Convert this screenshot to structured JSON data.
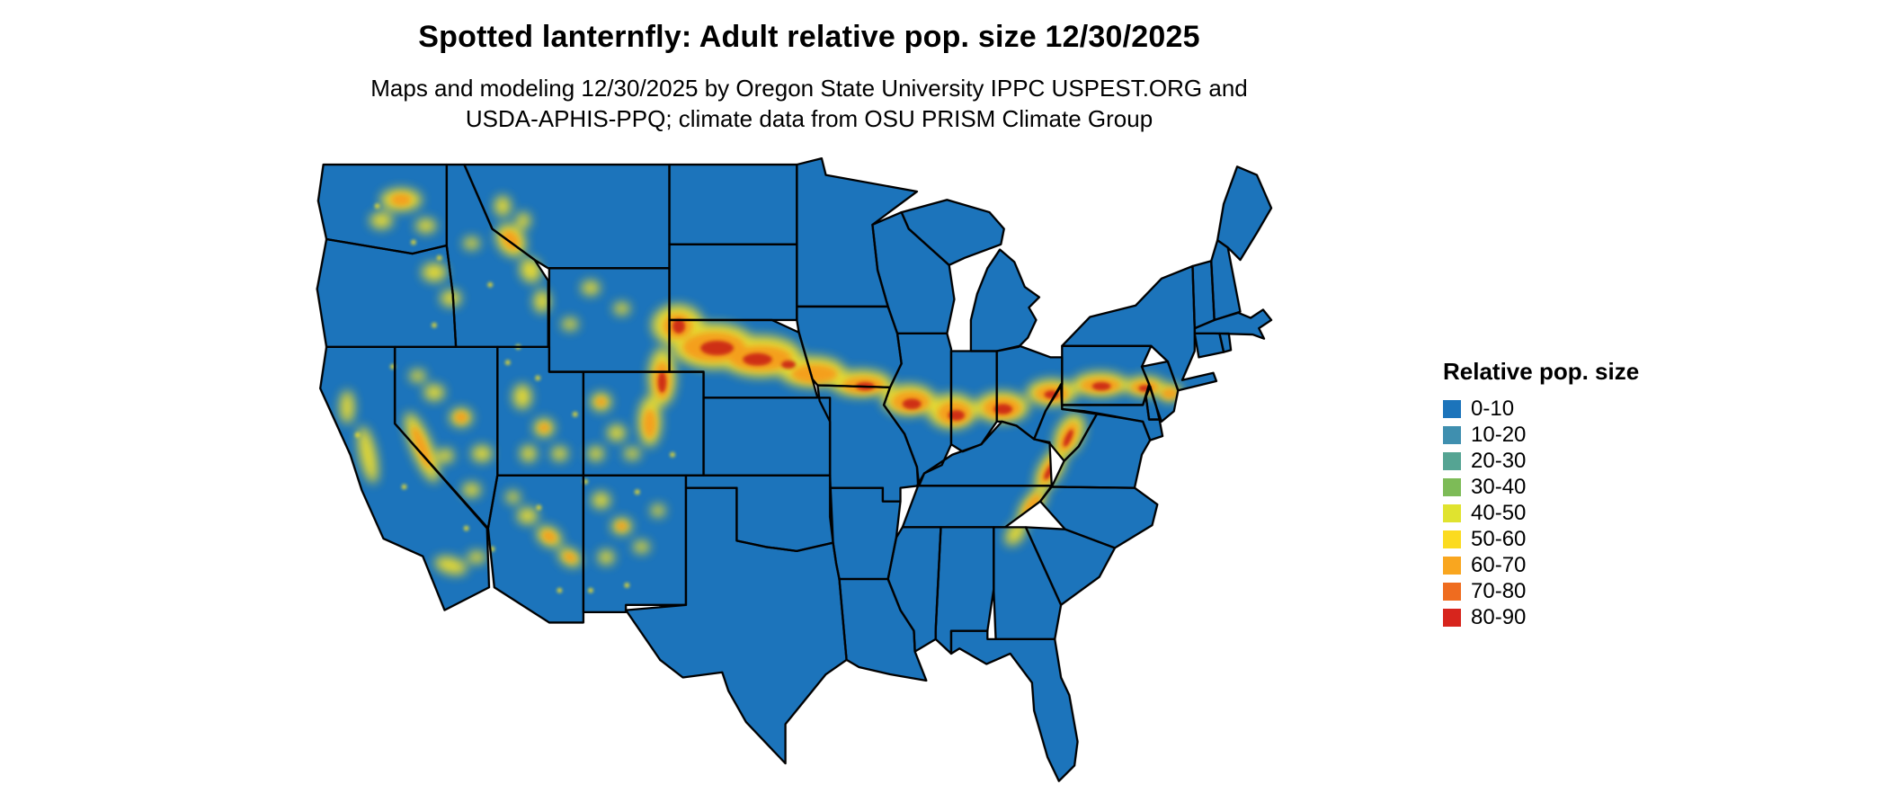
{
  "title": "Spotted lanternfly: Adult relative pop. size 12/30/2025",
  "subtitle_line1": "Maps and modeling 12/30/2025 by Oregon State University IPPC USPEST.ORG and",
  "subtitle_line2": "USDA-APHIS-PPQ; climate data from OSU PRISM Climate Group",
  "legend": {
    "title": "Relative pop. size",
    "items": [
      {
        "label": "0-10",
        "color": "#1C74BB"
      },
      {
        "label": "10-20",
        "color": "#3F8FAF"
      },
      {
        "label": "20-30",
        "color": "#55A493"
      },
      {
        "label": "30-40",
        "color": "#7DBB57"
      },
      {
        "label": "40-50",
        "color": "#E0E32F"
      },
      {
        "label": "50-60",
        "color": "#FBDB20"
      },
      {
        "label": "60-70",
        "color": "#F9A61F"
      },
      {
        "label": "70-80",
        "color": "#EF6C1F"
      },
      {
        "label": "80-90",
        "color": "#D7251D"
      }
    ]
  },
  "map": {
    "base_fill": "#1C74BB",
    "border_color": "#000000",
    "hotspot_yellow": "#F2DF2B",
    "hotspot_orange": "#F59C1E",
    "hotspot_red": "#CC2A18",
    "background": "#FFFFFF"
  }
}
